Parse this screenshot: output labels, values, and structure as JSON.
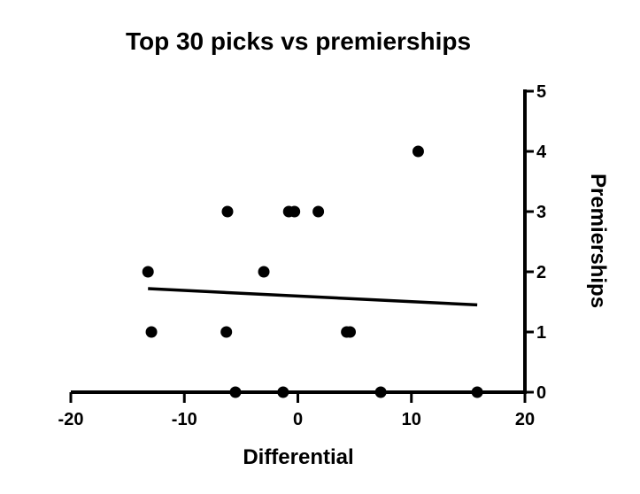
{
  "chart_data": {
    "type": "scatter",
    "title": "Top 30 picks vs premierships",
    "xlabel": "Differential",
    "ylabel": "Premierships",
    "xlim": [
      -20,
      20
    ],
    "ylim": [
      0,
      5
    ],
    "x_ticks": [
      -20,
      -10,
      0,
      10,
      20
    ],
    "y_ticks": [
      0,
      1,
      2,
      3,
      4,
      5
    ],
    "y_axis_position": "right",
    "grid": false,
    "legend": "none",
    "point_color": "#000000",
    "points": [
      {
        "x": 10.6,
        "y": 4
      },
      {
        "x": -6.2,
        "y": 3
      },
      {
        "x": -0.8,
        "y": 3
      },
      {
        "x": -0.3,
        "y": 3
      },
      {
        "x": 1.8,
        "y": 3
      },
      {
        "x": -13.2,
        "y": 2
      },
      {
        "x": -3.0,
        "y": 2
      },
      {
        "x": -12.9,
        "y": 1
      },
      {
        "x": -6.3,
        "y": 1
      },
      {
        "x": 4.3,
        "y": 1
      },
      {
        "x": 4.6,
        "y": 1
      },
      {
        "x": -5.5,
        "y": 0
      },
      {
        "x": -1.3,
        "y": 0
      },
      {
        "x": 7.3,
        "y": 0
      },
      {
        "x": 15.8,
        "y": 0
      }
    ],
    "trendline": {
      "x": [
        -13.2,
        15.8
      ],
      "y": [
        1.72,
        1.45
      ]
    }
  }
}
